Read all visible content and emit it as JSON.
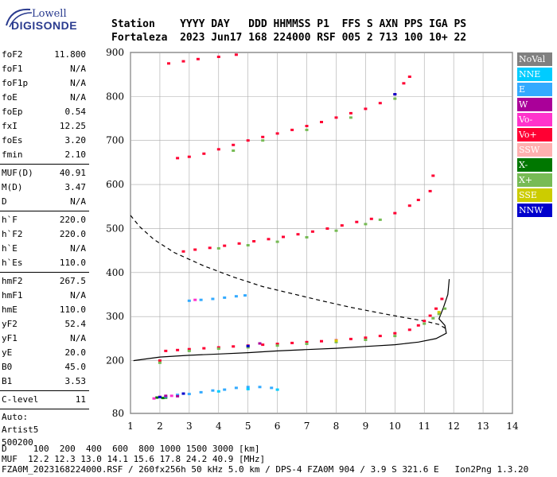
{
  "logo": {
    "line1": "Lowell",
    "line2": "DIGISONDE"
  },
  "header": {
    "line1": "Station    YYYY DAY   DDD HHMMSS P1  FFS S AXN PPS IGA PS",
    "line2": "Fortaleza  2023 Jun17 168 224000 RSF 005 2 713 100 10+ 22"
  },
  "params": {
    "group1": [
      {
        "k": "foF2",
        "v": "11.800"
      },
      {
        "k": "foF1",
        "v": "N/A"
      },
      {
        "k": "foF1p",
        "v": "N/A"
      },
      {
        "k": "foE",
        "v": "N/A"
      },
      {
        "k": "foEp",
        "v": "0.54"
      },
      {
        "k": "fxI",
        "v": "12.25"
      },
      {
        "k": "foEs",
        "v": "3.20"
      },
      {
        "k": "fmin",
        "v": "2.10"
      }
    ],
    "group2": [
      {
        "k": "MUF(D)",
        "v": "40.91"
      },
      {
        "k": "M(D)",
        "v": "3.47"
      },
      {
        "k": "D",
        "v": "N/A"
      }
    ],
    "group3": [
      {
        "k": "h`F",
        "v": "220.0"
      },
      {
        "k": "h`F2",
        "v": "220.0"
      },
      {
        "k": "h`E",
        "v": "N/A"
      },
      {
        "k": "h`Es",
        "v": "110.0"
      }
    ],
    "group4": [
      {
        "k": "hmF2",
        "v": "267.5"
      },
      {
        "k": "hmF1",
        "v": "N/A"
      },
      {
        "k": "hmE",
        "v": "110.0"
      },
      {
        "k": "yF2",
        "v": "52.4"
      },
      {
        "k": "yF1",
        "v": "N/A"
      },
      {
        "k": "yE",
        "v": "20.0"
      },
      {
        "k": "B0",
        "v": "45.0"
      },
      {
        "k": "B1",
        "v": "3.53"
      }
    ],
    "group5": [
      {
        "k": "C-level",
        "v": "11"
      }
    ],
    "footer_lines": [
      "Auto:",
      "Artist5",
      "500200"
    ]
  },
  "legend": [
    {
      "label": "NoVal",
      "color": "#808080"
    },
    {
      "label": "NNE",
      "color": "#00ccff"
    },
    {
      "label": "E",
      "color": "#33aaff"
    },
    {
      "label": "W",
      "color": "#aa0099"
    },
    {
      "label": "Vo-",
      "color": "#ff33cc"
    },
    {
      "label": "Vo+",
      "color": "#ff0033"
    },
    {
      "label": "SSW",
      "color": "#ffb0b0"
    },
    {
      "label": "X-",
      "color": "#007700"
    },
    {
      "label": "X+",
      "color": "#77bb55"
    },
    {
      "label": "SSE",
      "color": "#cccc00"
    },
    {
      "label": "NNW",
      "color": "#0000cc"
    }
  ],
  "footer": {
    "line1": "D     100  200  400  600  800 1000 1500 3000 [km]",
    "line2": "MUF  12.2 12.3 13.0 14.1 15.6 17.8 24.2 40.9 [MHz]",
    "line3": "FZA0M_2023168224000.RSF / 260fx256h 50 kHz 5.0 km / DPS-4 FZA0M 904 / 3.9 S 321.6 E   Ion2Png 1.3.20"
  },
  "chart_data": {
    "type": "scatter",
    "xlim": [
      1,
      14
    ],
    "ylim": [
      80,
      900
    ],
    "x_ticks": [
      1,
      2,
      3,
      4,
      5,
      6,
      7,
      8,
      9,
      10,
      11,
      12,
      13,
      14
    ],
    "y_ticks": [
      80,
      200,
      300,
      400,
      500,
      600,
      700,
      800,
      900
    ],
    "grid": true,
    "series": [
      {
        "name": "Vo+",
        "color": "#ff0033",
        "points": [
          [
            2.0,
            200
          ],
          [
            2.2,
            222
          ],
          [
            2.6,
            224
          ],
          [
            3.0,
            226
          ],
          [
            3.5,
            228
          ],
          [
            4.0,
            230
          ],
          [
            4.5,
            232
          ],
          [
            5.0,
            234
          ],
          [
            5.5,
            236
          ],
          [
            6.0,
            238
          ],
          [
            6.5,
            240
          ],
          [
            7.0,
            242
          ],
          [
            7.5,
            244
          ],
          [
            8.0,
            246
          ],
          [
            8.5,
            249
          ],
          [
            9.0,
            252
          ],
          [
            9.5,
            256
          ],
          [
            10.0,
            262
          ],
          [
            10.5,
            270
          ],
          [
            10.8,
            280
          ],
          [
            11.0,
            290
          ],
          [
            11.2,
            302
          ],
          [
            11.4,
            318
          ],
          [
            11.6,
            340
          ],
          [
            2.8,
            448
          ],
          [
            3.2,
            452
          ],
          [
            3.7,
            456
          ],
          [
            4.2,
            461
          ],
          [
            4.7,
            466
          ],
          [
            5.2,
            471
          ],
          [
            5.7,
            476
          ],
          [
            6.2,
            481
          ],
          [
            6.7,
            487
          ],
          [
            7.2,
            493
          ],
          [
            7.7,
            500
          ],
          [
            8.2,
            507
          ],
          [
            8.7,
            515
          ],
          [
            9.2,
            522
          ],
          [
            10.0,
            535
          ],
          [
            10.5,
            552
          ],
          [
            10.8,
            565
          ],
          [
            11.2,
            585
          ],
          [
            11.3,
            620
          ],
          [
            2.6,
            660
          ],
          [
            3.0,
            663
          ],
          [
            3.5,
            670
          ],
          [
            4.0,
            680
          ],
          [
            4.5,
            690
          ],
          [
            5.0,
            700
          ],
          [
            5.5,
            708
          ],
          [
            6.0,
            716
          ],
          [
            6.5,
            724
          ],
          [
            7.0,
            733
          ],
          [
            7.5,
            742
          ],
          [
            8.0,
            752
          ],
          [
            8.5,
            762
          ],
          [
            9.0,
            772
          ],
          [
            9.5,
            785
          ],
          [
            10.0,
            805
          ],
          [
            10.3,
            830
          ],
          [
            10.5,
            845
          ],
          [
            2.3,
            875
          ],
          [
            2.8,
            880
          ],
          [
            3.3,
            885
          ],
          [
            4.0,
            890
          ],
          [
            4.6,
            895
          ]
        ]
      },
      {
        "name": "X+",
        "color": "#77bb55",
        "points": [
          [
            2.0,
            195
          ],
          [
            3.0,
            222
          ],
          [
            4.0,
            227
          ],
          [
            5.0,
            230
          ],
          [
            6.0,
            234
          ],
          [
            7.0,
            238
          ],
          [
            8.0,
            242
          ],
          [
            9.0,
            247
          ],
          [
            10.0,
            256
          ],
          [
            11.0,
            284
          ],
          [
            11.3,
            296
          ],
          [
            11.5,
            306
          ],
          [
            11.7,
            318
          ],
          [
            4.0,
            455
          ],
          [
            5.0,
            462
          ],
          [
            6.0,
            470
          ],
          [
            7.0,
            480
          ],
          [
            8.0,
            495
          ],
          [
            9.0,
            510
          ],
          [
            9.5,
            520
          ],
          [
            4.5,
            677
          ],
          [
            5.5,
            700
          ],
          [
            7.0,
            724
          ],
          [
            8.5,
            752
          ],
          [
            10.0,
            795
          ]
        ]
      },
      {
        "name": "X-",
        "color": "#007700",
        "points": [
          [
            1.9,
            116
          ],
          [
            2.1,
            115
          ],
          [
            2.2,
            116
          ]
        ]
      },
      {
        "name": "E",
        "color": "#33aaff",
        "points": [
          [
            2.2,
            118
          ],
          [
            2.6,
            122
          ],
          [
            3.0,
            124
          ],
          [
            3.4,
            128
          ],
          [
            3.8,
            132
          ],
          [
            4.2,
            134
          ],
          [
            4.6,
            138
          ],
          [
            5.0,
            140
          ],
          [
            5.4,
            140
          ],
          [
            5.8,
            138
          ],
          [
            3.0,
            336
          ],
          [
            3.4,
            338
          ],
          [
            3.8,
            340
          ],
          [
            4.2,
            343
          ],
          [
            4.6,
            346
          ],
          [
            4.9,
            348
          ]
        ]
      },
      {
        "name": "NNE",
        "color": "#00ccff",
        "points": [
          [
            4.0,
            130
          ],
          [
            5.0,
            135
          ],
          [
            6.0,
            134
          ]
        ]
      },
      {
        "name": "Vo-",
        "color": "#ff33cc",
        "points": [
          [
            1.8,
            114
          ],
          [
            2.0,
            118
          ],
          [
            2.4,
            120
          ],
          [
            3.2,
            338
          ]
        ]
      },
      {
        "name": "W",
        "color": "#aa0099",
        "points": [
          [
            2.2,
            120
          ],
          [
            2.6,
            119
          ],
          [
            5.4,
            239
          ]
        ]
      },
      {
        "name": "NNW",
        "color": "#0000cc",
        "points": [
          [
            2.0,
            117
          ],
          [
            2.8,
            125
          ],
          [
            5.0,
            233
          ],
          [
            10.0,
            805
          ]
        ]
      },
      {
        "name": "SSE",
        "color": "#cccc00",
        "points": [
          [
            8.0,
            245
          ],
          [
            11.5,
            310
          ]
        ]
      }
    ],
    "curves": [
      {
        "style": "solid",
        "points": [
          [
            1.1,
            200
          ],
          [
            2.0,
            208
          ],
          [
            3.0,
            212
          ],
          [
            4.0,
            215
          ],
          [
            5.0,
            218
          ],
          [
            6.0,
            222
          ],
          [
            7.0,
            225
          ],
          [
            8.0,
            228
          ],
          [
            9.0,
            232
          ],
          [
            10.0,
            236
          ],
          [
            10.8,
            242
          ],
          [
            11.4,
            250
          ],
          [
            11.75,
            262
          ],
          [
            11.7,
            280
          ],
          [
            11.5,
            295
          ],
          [
            11.65,
            320
          ],
          [
            11.8,
            350
          ],
          [
            11.85,
            385
          ]
        ]
      },
      {
        "style": "dashed",
        "points": [
          [
            1.0,
            530
          ],
          [
            1.3,
            505
          ],
          [
            1.8,
            475
          ],
          [
            2.5,
            445
          ],
          [
            3.5,
            415
          ],
          [
            4.5,
            390
          ],
          [
            5.5,
            368
          ],
          [
            6.5,
            352
          ],
          [
            7.5,
            336
          ],
          [
            8.5,
            321
          ],
          [
            9.5,
            308
          ],
          [
            10.3,
            298
          ],
          [
            11.0,
            290
          ],
          [
            11.5,
            282
          ],
          [
            11.8,
            270
          ]
        ]
      }
    ]
  }
}
